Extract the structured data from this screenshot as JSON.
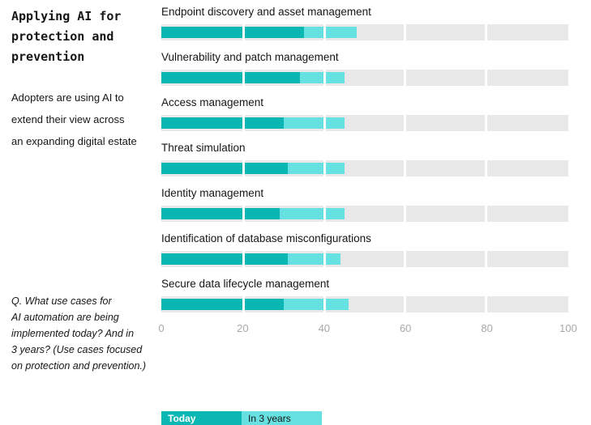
{
  "header": {
    "title": "Applying AI for\nprotection and\nprevention",
    "subtitle": "Adopters are using AI to\nextend their view across\nan expanding digital estate",
    "footnote": "Q. What use cases for\nAI automation are being\nimplemented today? And in\n3 years? (Use cases focused\non protection and prevention.)"
  },
  "colors": {
    "today": "#0bb7b3",
    "in_3_years": "#66e0e0",
    "track": "#e8e8e8",
    "axis_text": "#a8a8a8",
    "text": "#161616"
  },
  "chart_data": {
    "type": "bar",
    "orientation": "horizontal",
    "title": "Applying AI for protection and prevention",
    "xlim": [
      0,
      100
    ],
    "x_ticks": [
      0,
      20,
      40,
      60,
      80,
      100
    ],
    "grid": "segmented-track-with-white-gaps-every-20",
    "legend_position": "bottom-left",
    "series_note": "today bar overlays the in_3_years total bar; in_3_years is the full bar extent",
    "rows": [
      {
        "label": "Endpoint discovery and asset management",
        "today": 35,
        "in_3_years": 48
      },
      {
        "label": "Vulnerability and patch management",
        "today": 34,
        "in_3_years": 45
      },
      {
        "label": "Access management",
        "today": 30,
        "in_3_years": 45
      },
      {
        "label": "Threat simulation",
        "today": 31,
        "in_3_years": 45
      },
      {
        "label": "Identity management",
        "today": 29,
        "in_3_years": 45
      },
      {
        "label": "Identification of database misconfigurations",
        "today": 31,
        "in_3_years": 44
      },
      {
        "label": "Secure data lifecycle management",
        "today": 30,
        "in_3_years": 46
      }
    ],
    "legend": {
      "today_label": "Today",
      "in_3_years_label": "In 3 years"
    }
  }
}
